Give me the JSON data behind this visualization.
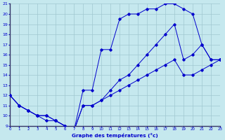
{
  "title": "Graphe des températures (°c)",
  "bg_color": "#c5e8ee",
  "grid_color": "#a0c8d0",
  "line_color": "#0000cc",
  "spine_color": "#444488",
  "xlim": [
    0,
    23
  ],
  "ylim": [
    9,
    21
  ],
  "xticks": [
    0,
    1,
    2,
    3,
    4,
    5,
    6,
    7,
    8,
    9,
    10,
    11,
    12,
    13,
    14,
    15,
    16,
    17,
    18,
    19,
    20,
    21,
    22,
    23
  ],
  "yticks": [
    9,
    10,
    11,
    12,
    13,
    14,
    15,
    16,
    17,
    18,
    19,
    20,
    21
  ],
  "curve1_x": [
    0,
    1,
    2,
    3,
    4,
    5,
    6,
    7,
    8,
    9,
    10,
    11,
    12,
    13,
    14,
    15,
    16,
    17,
    18,
    19,
    20,
    21,
    22,
    23
  ],
  "curve1_y": [
    12,
    11,
    10.5,
    10,
    9.5,
    9.5,
    9,
    8.5,
    12.5,
    12.5,
    16.5,
    16.5,
    19.5,
    20,
    20,
    20.5,
    20.5,
    21,
    21,
    20.5,
    20,
    17,
    15.5,
    15.5
  ],
  "curve2_x": [
    0,
    1,
    2,
    3,
    4,
    5,
    6,
    7,
    8,
    9,
    10,
    11,
    12,
    13,
    14,
    15,
    16,
    17,
    18,
    19,
    20,
    21,
    22,
    23
  ],
  "curve2_y": [
    12,
    11,
    10.5,
    10,
    10,
    9.5,
    9,
    8.5,
    11,
    11,
    11.5,
    12.5,
    13.5,
    14,
    15,
    16,
    17,
    18,
    19,
    15.5,
    16,
    17,
    15.5,
    15.5
  ],
  "curve3_x": [
    0,
    1,
    2,
    3,
    4,
    5,
    6,
    7,
    8,
    9,
    10,
    11,
    12,
    13,
    14,
    15,
    16,
    17,
    18,
    19,
    20,
    21,
    22,
    23
  ],
  "curve3_y": [
    12,
    11,
    10.5,
    10,
    10,
    9.5,
    9,
    8.5,
    11,
    11,
    11.5,
    12,
    12.5,
    13,
    13.5,
    14,
    14.5,
    15,
    15.5,
    14,
    14,
    14.5,
    15,
    15.5
  ]
}
